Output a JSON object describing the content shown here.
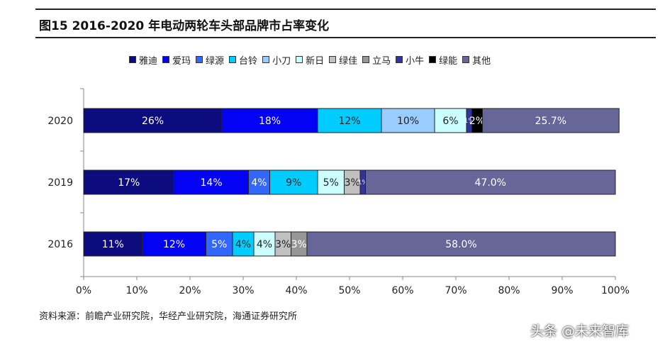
{
  "title": "图15 2016-2020 年电动两轮车头部品牌市占率变化",
  "source": "资料来源：前瞻产业研究院，华经产业研究院，海通证券研究所",
  "watermark": "头条 @未来智库",
  "chart_data": {
    "type": "bar",
    "orientation": "horizontal",
    "stacked": true,
    "categories": [
      "2020",
      "2019",
      "2016"
    ],
    "xlim": [
      0,
      100
    ],
    "x_ticks": [
      "0%",
      "10%",
      "20%",
      "30%",
      "40%",
      "50%",
      "60%",
      "70%",
      "80%",
      "90%",
      "100%"
    ],
    "grid": false,
    "legend_position": "top",
    "series": [
      {
        "name": "雅迪",
        "color": "#0c0c7e",
        "values": [
          26,
          17,
          11
        ],
        "labels": [
          "26%",
          "17%",
          "11%"
        ]
      },
      {
        "name": "爱玛",
        "color": "#0202f5",
        "values": [
          18,
          14,
          12
        ],
        "labels": [
          "18%",
          "14%",
          "12%"
        ]
      },
      {
        "name": "绿源",
        "color": "#3366ff",
        "values": [
          0,
          4,
          5
        ],
        "labels": [
          "",
          "4%",
          "5%"
        ]
      },
      {
        "name": "台铃",
        "color": "#00ccff",
        "values": [
          12,
          9,
          4
        ],
        "labels": [
          "12%",
          "9%",
          "4%"
        ]
      },
      {
        "name": "小刀",
        "color": "#99ccff",
        "values": [
          10,
          0,
          0
        ],
        "labels": [
          "10%",
          "",
          ""
        ]
      },
      {
        "name": "新日",
        "color": "#ccffff",
        "values": [
          6,
          5,
          4
        ],
        "labels": [
          "6%",
          "5%",
          "4%"
        ]
      },
      {
        "name": "绿佳",
        "color": "#c0c0c0",
        "values": [
          0,
          3,
          3
        ],
        "labels": [
          "",
          "3%",
          "3%"
        ]
      },
      {
        "name": "立马",
        "color": "#969696",
        "values": [
          0,
          0,
          3
        ],
        "labels": [
          "",
          "",
          "3%"
        ]
      },
      {
        "name": "小牛",
        "color": "#333399",
        "values": [
          1,
          1,
          0
        ],
        "labels": [
          "1%",
          "1%",
          ""
        ]
      },
      {
        "name": "绿能",
        "color": "#000000",
        "values": [
          2,
          0,
          0
        ],
        "labels": [
          "2%",
          "",
          ""
        ]
      },
      {
        "name": "其他",
        "color": "#666699",
        "values": [
          25.7,
          47.0,
          58.0
        ],
        "labels": [
          "25.7%",
          "47.0%",
          "58.0%"
        ]
      }
    ]
  }
}
